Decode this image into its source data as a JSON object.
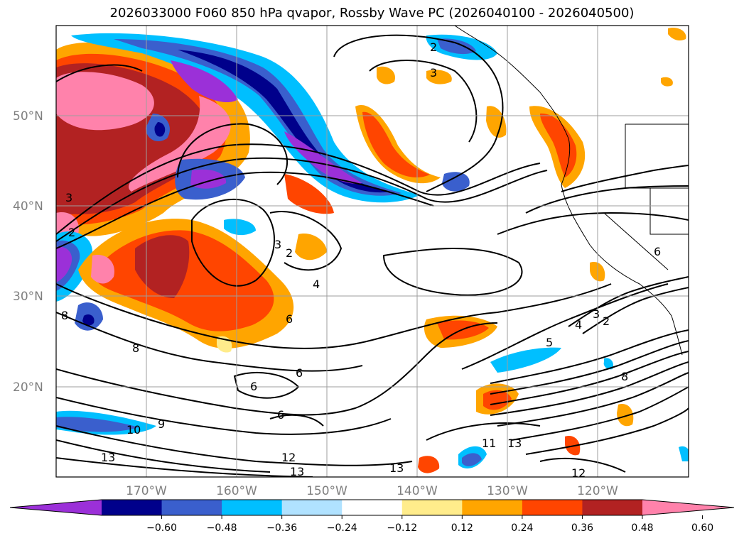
{
  "title": "2026033000 F060 850 hPa qvapor, Rossby Wave PC (2026040100 - 2026040500)",
  "lat_labels": [
    "50°N",
    "40°N",
    "30°N",
    "20°N"
  ],
  "lon_labels": [
    "170°W",
    "160°W",
    "150°W",
    "140°W",
    "130°W",
    "120°W"
  ],
  "colorbar": {
    "colors": [
      "#9b30d8",
      "#00008b",
      "#3a5fcd",
      "#00bfff",
      "#b0e2ff",
      "#ffffff",
      "#ffec8b",
      "#ffa500",
      "#ff4500",
      "#b22222",
      "#ff82ab"
    ],
    "tick_labels": [
      "−0.60",
      "−0.48",
      "−0.36",
      "−0.24",
      "−0.12",
      "0.12",
      "0.24",
      "0.36",
      "0.48",
      "0.60"
    ]
  },
  "contour_labels": [
    "2",
    "3",
    "3",
    "2",
    "4",
    "6",
    "8",
    "6",
    "6",
    "6",
    "10",
    "9",
    "13",
    "12",
    "13",
    "13",
    "11",
    "13",
    "12",
    "5",
    "4",
    "3",
    "2",
    "8",
    "6",
    "3",
    "2",
    "8"
  ]
}
